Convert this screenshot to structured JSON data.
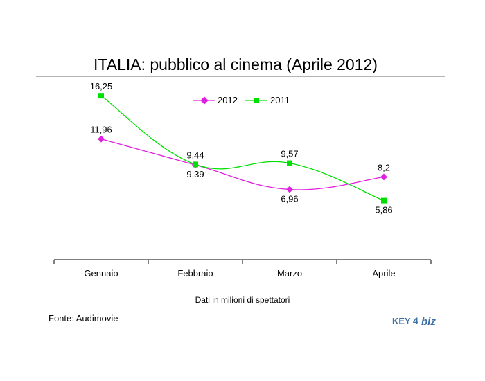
{
  "title": "ITALIA: pubblico al cinema (Aprile 2012)",
  "source": "Fonte: Audimovie",
  "logo": {
    "part1": "KEY",
    "part2": "4",
    "part3": "biz"
  },
  "colors": {
    "series_2012": "#e020e0",
    "series_2011": "#00e000",
    "rule": "#b3b3b3",
    "logo": "#3a6fa8"
  },
  "chart_data": {
    "type": "line",
    "title": "ITALIA: pubblico al cinema (Aprile 2012)",
    "xlabel": "Dati in milioni di spettatori",
    "ylabel": "",
    "categories": [
      "Gennaio",
      "Febbraio",
      "Marzo",
      "Aprile"
    ],
    "ylim": [
      0,
      20
    ],
    "grid": false,
    "legend_position": "top-center",
    "series": [
      {
        "name": "2012",
        "values": [
          11.96,
          9.39,
          6.96,
          8.2
        ],
        "labels": [
          "11,96",
          "9,39",
          "6,96",
          "8,2"
        ],
        "marker": "diamond"
      },
      {
        "name": "2011",
        "values": [
          16.25,
          9.44,
          9.57,
          5.86
        ],
        "labels": [
          "16,25",
          "9,44",
          "9,57",
          "5,86"
        ],
        "marker": "square"
      }
    ]
  }
}
